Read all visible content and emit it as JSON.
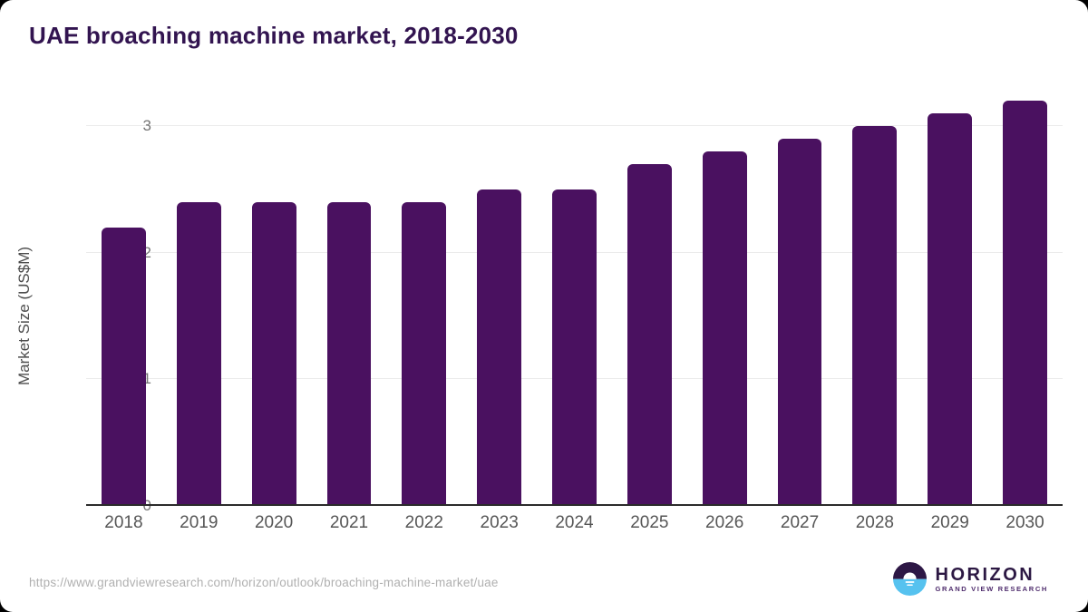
{
  "header": {
    "title": "UAE broaching machine market, 2018-2030"
  },
  "chart_data": {
    "type": "bar",
    "categories": [
      "2018",
      "2019",
      "2020",
      "2021",
      "2022",
      "2023",
      "2024",
      "2025",
      "2026",
      "2027",
      "2028",
      "2029",
      "2030"
    ],
    "values": [
      2.2,
      2.4,
      2.4,
      2.4,
      2.4,
      2.5,
      2.5,
      2.7,
      2.8,
      2.9,
      3.0,
      3.1,
      3.2
    ],
    "title": "UAE broaching machine market, 2018-2030",
    "xlabel": "",
    "ylabel": "Market Size (US$M)",
    "ylim": [
      0,
      3.3
    ],
    "yticks": [
      0,
      1,
      2,
      3
    ],
    "grid": "horizontal",
    "legend": "none"
  },
  "colors": {
    "bar_color": "#4a1160",
    "title_color": "#321450",
    "grid_color": "#ebebeb",
    "baseline_color": "#2b2b2b",
    "tick_color": "#757575",
    "card_bg": "#ffffff",
    "logo_dark": "#2d1745",
    "logo_blue": "#56c2ef"
  },
  "footer": {
    "source_url": "https://www.grandviewresearch.com/horizon/outlook/broaching-machine-market/uae",
    "logo": {
      "brand": "HORIZON",
      "sub_brand": "GRAND VIEW RESEARCH",
      "icon": "sunset-circle-icon"
    }
  }
}
